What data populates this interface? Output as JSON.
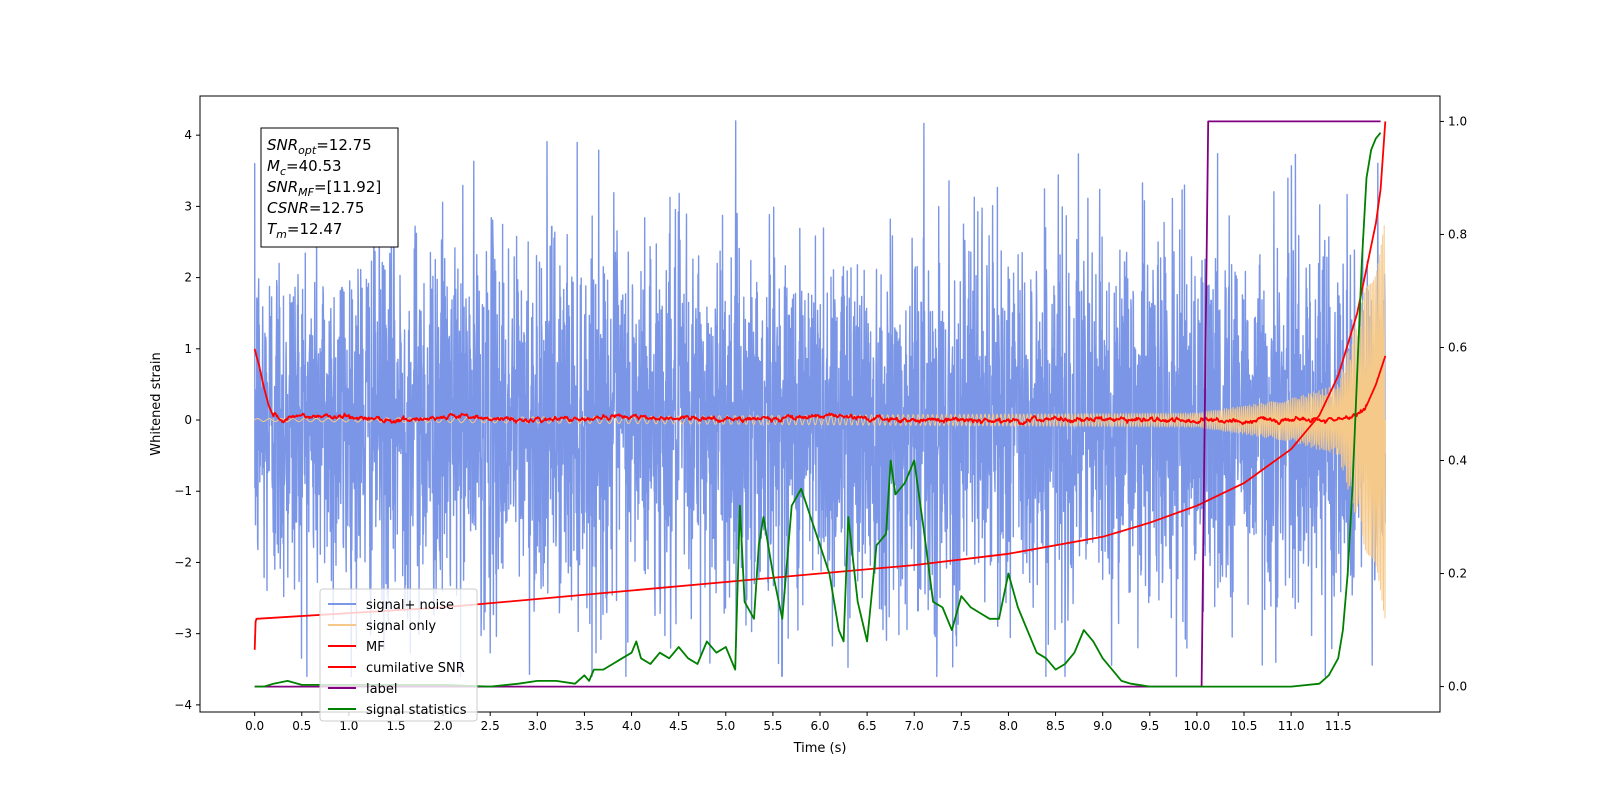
{
  "chart_data": {
    "type": "line",
    "xlabel": "Time (s)",
    "ylabel": "Whitened strain",
    "xlim": [
      -0.58,
      12.58
    ],
    "ylim": [
      -4.1,
      4.55
    ],
    "ylim_right": [
      -0.045,
      1.045
    ],
    "grid": false,
    "legend_position": "lower-left",
    "xticks": [
      0.0,
      0.5,
      1.0,
      1.5,
      2.0,
      2.5,
      3.0,
      3.5,
      4.0,
      4.5,
      5.0,
      5.5,
      6.0,
      6.5,
      7.0,
      7.5,
      8.0,
      8.5,
      9.0,
      9.5,
      10.0,
      10.5,
      11.0,
      11.5
    ],
    "xtick_labels": [
      "0.0",
      "0.5",
      "1.0",
      "1.5",
      "2.0",
      "2.5",
      "3.0",
      "3.5",
      "4.0",
      "4.5",
      "5.0",
      "5.5",
      "6.0",
      "6.5",
      "7.0",
      "7.5",
      "8.0",
      "8.5",
      "9.0",
      "9.5",
      "10.0",
      "10.5",
      "11.0",
      "11.5"
    ],
    "yticks": [
      -4,
      -3,
      -2,
      -1,
      0,
      1,
      2,
      3,
      4
    ],
    "ytick_labels": [
      "−4",
      "−3",
      "−2",
      "−1",
      "0",
      "1",
      "2",
      "3",
      "4"
    ],
    "yticks_right": [
      0.0,
      0.2,
      0.4,
      0.6,
      0.8,
      1.0
    ],
    "ytick_right_labels": [
      "0.0",
      "0.2",
      "0.4",
      "0.6",
      "0.8",
      "1.0"
    ],
    "annotation": {
      "lines": [
        {
          "base": "SNR",
          "sub": "opt",
          "value": "=12.75"
        },
        {
          "base": "M",
          "sub": "c",
          "value": "=40.53"
        },
        {
          "base": "SNR",
          "sub": "MF",
          "value": "=[11.92]"
        },
        {
          "base": "CSNR",
          "sub": "",
          "value": "=12.75"
        },
        {
          "base": "T",
          "sub": "m",
          "value": "=12.47"
        }
      ]
    },
    "series": [
      {
        "name": "signal+ noise",
        "color": "#7b96e6",
        "axis": "left",
        "kind": "noise",
        "x_range": [
          0.0,
          12.0
        ],
        "amplitude_std": 1.3,
        "approx_range": [
          -3.6,
          4.2
        ]
      },
      {
        "name": "signal only",
        "color": "#f5c98a",
        "axis": "left",
        "kind": "chirp",
        "x_range": [
          0.0,
          12.0
        ],
        "envelope": [
          [
            0.0,
            0.02
          ],
          [
            10.0,
            0.1
          ],
          [
            11.0,
            0.3
          ],
          [
            11.5,
            0.5
          ],
          [
            12.0,
            2.8
          ]
        ]
      },
      {
        "name": "MF",
        "color": "#ff0000",
        "axis": "left",
        "kind": "mf",
        "x": [
          0.0,
          0.05,
          0.1,
          0.15,
          0.2,
          0.3,
          0.5,
          1.0,
          1.5,
          2.0,
          3.0,
          4.0,
          5.0,
          6.0,
          7.0,
          8.0,
          9.0,
          10.0,
          11.0,
          11.5,
          11.7,
          11.8,
          11.9,
          12.0
        ],
        "y": [
          1.0,
          0.75,
          0.45,
          0.2,
          0.05,
          0.0,
          0.05,
          0.05,
          0.0,
          0.05,
          0.0,
          0.05,
          0.0,
          0.05,
          0.0,
          0.0,
          0.0,
          0.0,
          0.0,
          0.0,
          0.05,
          0.2,
          0.5,
          0.9
        ]
      },
      {
        "name": "cumilative SNR",
        "color": "#ff0000",
        "axis": "right",
        "x": [
          0.0,
          0.01,
          0.02,
          1.0,
          2.0,
          3.0,
          4.0,
          5.0,
          6.0,
          7.0,
          8.0,
          9.0,
          9.5,
          10.0,
          10.5,
          11.0,
          11.3,
          11.5,
          11.7,
          11.8,
          11.9,
          11.95,
          12.0
        ],
        "y": [
          0.065,
          0.115,
          0.12,
          0.13,
          0.14,
          0.155,
          0.17,
          0.185,
          0.2,
          0.215,
          0.235,
          0.265,
          0.29,
          0.32,
          0.36,
          0.42,
          0.48,
          0.55,
          0.66,
          0.74,
          0.82,
          0.88,
          1.0
        ]
      },
      {
        "name": "label",
        "color": "#800080",
        "axis": "right",
        "x": [
          0.0,
          10.05,
          10.12,
          11.95
        ],
        "y": [
          0.0,
          0.0,
          1.0,
          1.0
        ]
      },
      {
        "name": "signal statistics",
        "color": "#008000",
        "axis": "right",
        "x": [
          0.0,
          0.1,
          0.2,
          0.35,
          0.5,
          1.0,
          1.5,
          2.0,
          2.5,
          2.8,
          3.0,
          3.2,
          3.4,
          3.5,
          3.55,
          3.6,
          3.7,
          3.8,
          3.9,
          4.0,
          4.05,
          4.1,
          4.2,
          4.3,
          4.4,
          4.5,
          4.6,
          4.7,
          4.8,
          4.9,
          5.0,
          5.1,
          5.15,
          5.2,
          5.3,
          5.35,
          5.4,
          5.5,
          5.6,
          5.7,
          5.8,
          5.9,
          6.0,
          6.1,
          6.15,
          6.2,
          6.25,
          6.3,
          6.4,
          6.5,
          6.6,
          6.7,
          6.75,
          6.8,
          6.9,
          7.0,
          7.1,
          7.2,
          7.3,
          7.4,
          7.5,
          7.6,
          7.7,
          7.8,
          7.9,
          8.0,
          8.1,
          8.2,
          8.3,
          8.4,
          8.5,
          8.6,
          8.7,
          8.8,
          8.9,
          9.0,
          9.1,
          9.2,
          9.3,
          9.5,
          10.0,
          10.5,
          11.0,
          11.3,
          11.4,
          11.5,
          11.55,
          11.6,
          11.65,
          11.7,
          11.75,
          11.8,
          11.85,
          11.9,
          11.95
        ],
        "y": [
          0.0,
          0.0,
          0.005,
          0.01,
          0.003,
          0.003,
          0.003,
          0.003,
          0.0,
          0.005,
          0.01,
          0.01,
          0.005,
          0.02,
          0.01,
          0.03,
          0.03,
          0.04,
          0.05,
          0.06,
          0.08,
          0.05,
          0.04,
          0.06,
          0.05,
          0.07,
          0.05,
          0.04,
          0.08,
          0.06,
          0.07,
          0.03,
          0.32,
          0.15,
          0.12,
          0.25,
          0.3,
          0.2,
          0.12,
          0.32,
          0.35,
          0.3,
          0.25,
          0.2,
          0.15,
          0.1,
          0.08,
          0.3,
          0.15,
          0.08,
          0.25,
          0.27,
          0.4,
          0.34,
          0.36,
          0.4,
          0.28,
          0.15,
          0.14,
          0.1,
          0.16,
          0.14,
          0.13,
          0.12,
          0.12,
          0.2,
          0.14,
          0.1,
          0.06,
          0.05,
          0.03,
          0.04,
          0.06,
          0.1,
          0.08,
          0.05,
          0.03,
          0.01,
          0.005,
          0.0,
          0.0,
          0.0,
          0.0,
          0.005,
          0.02,
          0.05,
          0.1,
          0.2,
          0.35,
          0.55,
          0.75,
          0.9,
          0.95,
          0.97,
          0.98
        ]
      }
    ]
  }
}
